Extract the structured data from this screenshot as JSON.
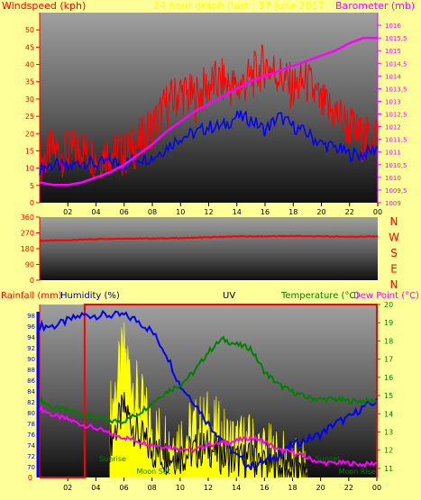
{
  "colors": {
    "bg": "#ffff99",
    "wind_speed": "#ff0000",
    "wind_gust_avg": "#0000ff",
    "barometer": "#ff00ff",
    "direction": "#ff0000",
    "humidity": "#0000ff",
    "temperature": "#008000",
    "dew_point": "#ff00ff",
    "rain": "#ff0000",
    "uv": "#ffff00",
    "solar": "#000000",
    "axis_left": "#ff0000",
    "axis_right": "#ff00ff"
  },
  "chart_data": [
    {
      "type": "line",
      "title": "24 hour graph (last : 17 June 2017",
      "ylabel": "Windspeed (kph)",
      "y2label": "Barometer (mb)",
      "x_ticks": [
        "02",
        "04",
        "06",
        "08",
        "10",
        "12",
        "14",
        "16",
        "18",
        "20",
        "22",
        "00"
      ],
      "ylim": [
        0,
        55
      ],
      "y_ticks": [
        "0",
        "5",
        "10",
        "15",
        "20",
        "25",
        "30",
        "35",
        "40",
        "45",
        "50"
      ],
      "y2lim": [
        1009,
        1016.5
      ],
      "y2_ticks": [
        "1009",
        "1009,5",
        "1010",
        "1010,5",
        "1011",
        "1011,5",
        "1012",
        "1012,5",
        "1013",
        "1013,5",
        "1014",
        "1014,5",
        "1015",
        "1015,5",
        "1016"
      ],
      "x": [
        0,
        1,
        2,
        3,
        4,
        5,
        6,
        7,
        8,
        9,
        10,
        11,
        12,
        13,
        14,
        15,
        16,
        17,
        18,
        19,
        20,
        21,
        22,
        23,
        24
      ],
      "series": [
        {
          "values": [
            12,
            15,
            14,
            16,
            13,
            15,
            14,
            17,
            22,
            28,
            32,
            30,
            34,
            35,
            33,
            36,
            40,
            37,
            33,
            35,
            28,
            26,
            22,
            18,
            20
          ]
        },
        {
          "values": [
            10,
            11,
            10,
            12,
            11,
            12,
            11,
            13,
            13,
            16,
            19,
            20,
            22,
            22,
            25,
            24,
            21,
            25,
            22,
            20,
            17,
            16,
            14,
            14,
            16
          ]
        },
        {
          "values": [
            1009.8,
            1009.7,
            1009.7,
            1009.8,
            1010.0,
            1010.2,
            1010.5,
            1010.9,
            1011.3,
            1011.8,
            1012.2,
            1012.6,
            1012.9,
            1013.2,
            1013.5,
            1013.8,
            1014.0,
            1014.2,
            1014.4,
            1014.6,
            1014.8,
            1015.0,
            1015.3,
            1015.5,
            1015.5
          ]
        }
      ]
    },
    {
      "type": "line",
      "ylim": [
        0,
        360
      ],
      "y_ticks": [
        "0",
        "90",
        "180",
        "270",
        "360"
      ],
      "right_labels": [
        "N",
        "W",
        "S",
        "E",
        "N"
      ],
      "x": [
        0,
        2,
        4,
        6,
        8,
        10,
        12,
        14,
        16,
        18,
        20,
        22,
        24
      ],
      "series": [
        {
          "values": [
            225,
            228,
            235,
            238,
            238,
            240,
            245,
            250,
            250,
            252,
            250,
            248,
            250
          ]
        }
      ]
    },
    {
      "type": "line",
      "header_labels": [
        "Rainfall (mm)",
        "Humidity (%)",
        "UV",
        "Temperature (°C)",
        "Dew Point (°C)"
      ],
      "ylim": [
        68,
        100
      ],
      "y_ticks": [
        "70",
        "72",
        "74",
        "76",
        "78",
        "80",
        "82",
        "84",
        "86",
        "88",
        "90",
        "92",
        "94",
        "96",
        "98"
      ],
      "y2lim": [
        10.5,
        20
      ],
      "y2_ticks": [
        "11",
        "12",
        "13",
        "14",
        "15",
        "16",
        "17",
        "18",
        "19",
        "20"
      ],
      "rain_scale_ticks": [
        "0"
      ],
      "x": [
        0,
        1,
        2,
        3,
        4,
        5,
        6,
        7,
        8,
        9,
        10,
        11,
        12,
        13,
        14,
        15,
        16,
        17,
        18,
        19,
        20,
        21,
        22,
        23,
        24
      ],
      "series": [
        {
          "values": [
            96,
            96,
            97,
            98,
            98,
            98,
            98,
            97,
            95,
            91,
            85,
            82,
            78,
            75,
            72,
            70,
            71,
            72,
            74,
            75,
            76,
            78,
            79,
            81,
            82
          ]
        },
        {
          "values": [
            14.8,
            14.3,
            14.2,
            14.0,
            13.8,
            13.6,
            13.6,
            14.0,
            14.6,
            15.2,
            15.6,
            16.3,
            17.4,
            18.1,
            17.8,
            17.6,
            16.3,
            15.6,
            15.2,
            14.9,
            14.8,
            14.8,
            14.7,
            14.7,
            14.7
          ]
        },
        {
          "values": [
            14.3,
            13.9,
            13.7,
            13.4,
            13.2,
            12.9,
            12.7,
            12.5,
            12.3,
            12.2,
            12.1,
            12.0,
            12.3,
            12.4,
            12.5,
            12.7,
            12.5,
            12.0,
            11.9,
            11.6,
            11.3,
            11.3,
            11.3,
            11.2,
            11.3
          ]
        },
        {
          "values": [
            0,
            0,
            0,
            0,
            0,
            0,
            0,
            0,
            0,
            0,
            0,
            0,
            0,
            0,
            0,
            0,
            0,
            0,
            0,
            0,
            0,
            0,
            0,
            0,
            0
          ]
        },
        {
          "values": [
            0,
            0,
            0,
            0,
            0,
            0.8,
            1.6,
            1.0,
            0.6,
            0.5,
            0.5,
            0.6,
            0.7,
            0.5,
            0.4,
            0.4,
            0.3,
            0.2,
            0.1,
            0,
            0,
            0,
            0,
            0,
            0
          ]
        }
      ],
      "annotations": [
        "Sunrise",
        "Moon Set",
        "Sunset",
        "Moon Rise"
      ],
      "rain_total_line_from_hour": 3.2
    }
  ]
}
